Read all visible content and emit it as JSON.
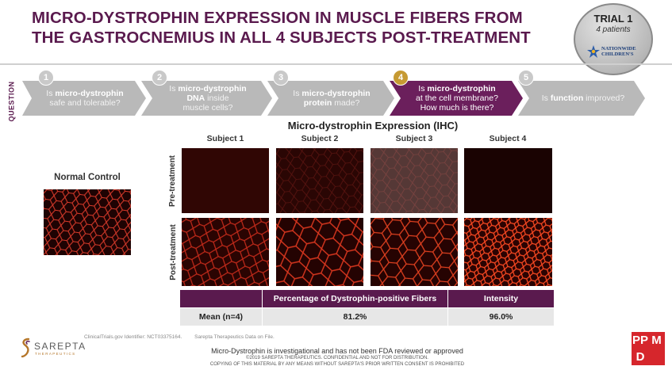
{
  "title": {
    "line1": "MICRO-DYSTROPHIN EXPRESSION IN MUSCLE FIBERS FROM",
    "line2": "THE GASTROCNEMIUS IN ALL 4 SUBJECTS POST-TREATMENT"
  },
  "badge": {
    "trial": "TRIAL 1",
    "patients": "4 patients",
    "logo_line1": "NATIONWIDE",
    "logo_line2": "CHILDREN'S"
  },
  "question_label": "QUESTION",
  "steps": [
    {
      "num": "1",
      "pre": "Is ",
      "bold": "micro-dystrophin",
      "post": "safe and tolerable?"
    },
    {
      "num": "2",
      "pre": "Is ",
      "bold": "micro-dystrophin",
      "post2": "DNA",
      "post3": "inside",
      "post4": "muscle cells?"
    },
    {
      "num": "3",
      "pre": "Is ",
      "bold": "micro-dystrophin",
      "post2": "protein",
      "post3": " made?"
    },
    {
      "num": "4",
      "pre": "Is ",
      "bold": "micro-dystrophin",
      "post": "at the cell membrane?",
      "post2": "How much is there?"
    },
    {
      "num": "5",
      "pre": "Is ",
      "bold": "function",
      "post": " improved?"
    }
  ],
  "active_step": 4,
  "ihc_title": "Micro-dystrophin Expression (IHC)",
  "subjects": [
    "Subject 1",
    "Subject 2",
    "Subject 3",
    "Subject 4"
  ],
  "rows": [
    "Pre-treatment",
    "Post-treatment"
  ],
  "normal_control": "Normal Control",
  "table": {
    "headers": [
      "",
      "Percentage of Dystrophin-positive Fibers",
      "Intensity"
    ],
    "row_label": "Mean (n=4)",
    "pct": "81.2%",
    "intensity": "96.0%"
  },
  "source": {
    "id": "ClinicalTrials.gov Identifier: NCT03375164.",
    "note": "Sarepta Therapeutics Data on File."
  },
  "sarepta": {
    "name": "SAREPTA",
    "sub": "THERAPEUTICS"
  },
  "disclaimer": "Micro-Dystrophin is investigational and has not been FDA reviewed or approved",
  "copyright1": "©2019 SAREPTA THERAPEUTICS. CONFIDENTIAL AND NOT FOR DISTRIBUTION.",
  "copyright2": "COPYING OF THIS MATERIAL BY ANY MEANS WITHOUT SAREPTA'S PRIOR WRITTEN CONSENT IS PROHIBITED",
  "ppmd": [
    "PP",
    "M",
    "D",
    ""
  ],
  "colors": {
    "brand_purple": "#5a1a4e",
    "active_step": "#6b1f5c",
    "active_num": "#c69a32",
    "step_gray": "#b9b9b9",
    "ppmd_red": "#d6262c"
  }
}
